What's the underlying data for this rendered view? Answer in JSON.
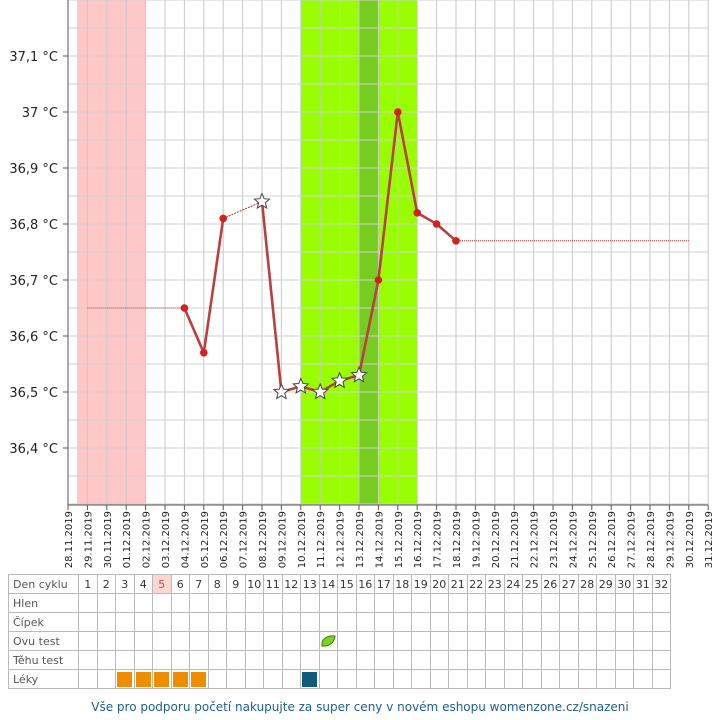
{
  "chart_data": {
    "type": "line",
    "title": "",
    "xlabel": "",
    "ylabel": "",
    "x": [
      "28.11.2019",
      "29.11.2019",
      "30.11.2019",
      "01.12.2019",
      "02.12.2019",
      "03.12.2019",
      "04.12.2019",
      "05.12.2019",
      "06.12.2019",
      "07.12.2019",
      "08.12.2019",
      "09.12.2019",
      "10.12.2019",
      "11.12.2019",
      "12.12.2019",
      "13.12.2019",
      "14.12.2019",
      "15.12.2019",
      "16.12.2019",
      "17.12.2019",
      "18.12.2019",
      "19.12.2019",
      "20.12.2019",
      "21.12.2019",
      "22.12.2019",
      "23.12.2019",
      "24.12.2019",
      "25.12.2019",
      "26.12.2019",
      "27.12.2019",
      "28.12.2019",
      "29.12.2019",
      "30.12.2019",
      "31.12.2019"
    ],
    "ylim": [
      36.3,
      37.2
    ],
    "yticks": [
      {
        "value": 36.4,
        "label": "36,4 °C"
      },
      {
        "value": 36.5,
        "label": "36,5 °C"
      },
      {
        "value": 36.6,
        "label": "36,6 °C"
      },
      {
        "value": 36.7,
        "label": "36,7 °C"
      },
      {
        "value": 36.8,
        "label": "36,8 °C"
      },
      {
        "value": 36.9,
        "label": "36,9 °C"
      },
      {
        "value": 37.0,
        "label": "37 °C"
      },
      {
        "value": 37.1,
        "label": "37,1 °C"
      }
    ],
    "series": [
      {
        "values": [
          null,
          null,
          null,
          null,
          null,
          null,
          36.65,
          36.57,
          36.81,
          null,
          36.84,
          36.5,
          36.51,
          36.5,
          36.52,
          36.53,
          36.7,
          37.0,
          36.82,
          36.8,
          36.77,
          null,
          null,
          null,
          null,
          null,
          null,
          null,
          null,
          null,
          null,
          null,
          null,
          null
        ],
        "star_markers": [
          10,
          11,
          12,
          13,
          14,
          15
        ]
      }
    ],
    "reference_lines": [
      {
        "from": "29.11.2019",
        "to": "04.12.2019",
        "value": 36.65
      },
      {
        "from": "18.12.2019",
        "to": "30.12.2019",
        "value": 36.77
      }
    ],
    "bands": [
      {
        "from": "28.11.2019",
        "to": "02.12.2019",
        "color": "#ffc8c8",
        "meaning": "menstruation"
      },
      {
        "from": "10.12.2019",
        "to": "16.12.2019",
        "color": "#99ff00",
        "meaning": "fertile"
      },
      {
        "from": "13.12.2019",
        "to": "14.12.2019",
        "color": "#77cc22",
        "meaning": "ovulation"
      }
    ],
    "grid": true,
    "line_color": "#b84040",
    "point_color": "#d42020"
  },
  "calendar": {
    "rows": [
      "Den cyklu",
      "Hlen",
      "Čípek",
      "Ovu test",
      "Těhu test",
      "Léky"
    ],
    "cycle_days": [
      1,
      2,
      3,
      4,
      5,
      6,
      7,
      8,
      9,
      10,
      11,
      12,
      13,
      14,
      15,
      16,
      17,
      18,
      19,
      20,
      21,
      22,
      23,
      24,
      25,
      26,
      27,
      28,
      29,
      30,
      31,
      32
    ],
    "today_day": 5,
    "ovu_test_days": [
      14
    ],
    "meds": [
      {
        "day": 3,
        "color": "#f08c00"
      },
      {
        "day": 4,
        "color": "#f08c00"
      },
      {
        "day": 5,
        "color": "#f08c00"
      },
      {
        "day": 6,
        "color": "#f08c00"
      },
      {
        "day": 7,
        "color": "#f08c00"
      },
      {
        "day": 13,
        "color": "#135a7a"
      }
    ]
  },
  "footer": {
    "text": "Vše pro podporu početí nakupujte za super ceny v novém eshopu womenzone.cz/snazeni"
  }
}
